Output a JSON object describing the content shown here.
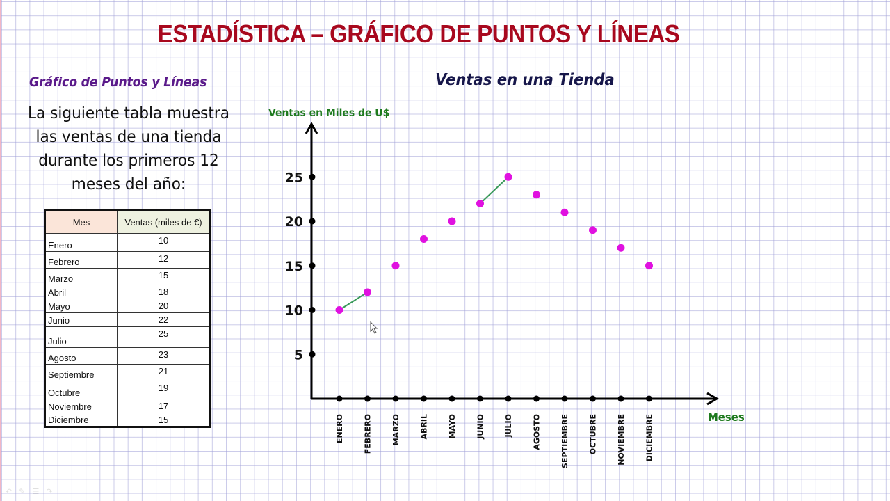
{
  "page": {
    "title": "ESTADÍSTICA – GRÁFICO DE PUNTOS Y LÍNEAS",
    "subtitle": "Gráfico de Puntos y Líneas",
    "intro_lines": [
      "La siguiente tabla muestra",
      "las ventas de una tienda",
      "durante los primeros 12",
      "meses del año:"
    ]
  },
  "table": {
    "headers": [
      "Mes",
      "Ventas (miles de €)"
    ],
    "rows": [
      [
        "Enero",
        "10"
      ],
      [
        "Febrero",
        "12"
      ],
      [
        "Marzo",
        "15"
      ],
      [
        "Abril",
        "18"
      ],
      [
        "Mayo",
        "20"
      ],
      [
        "Junio",
        "22"
      ],
      [
        "Julio",
        "25"
      ],
      [
        "Agosto",
        "23"
      ],
      [
        "Septiembre",
        "21"
      ],
      [
        "Octubre",
        "19"
      ],
      [
        "Noviembre",
        "17"
      ],
      [
        "Diciembre",
        "15"
      ]
    ]
  },
  "chart_data": {
    "type": "scatter",
    "title": "Ventas en una Tienda",
    "xlabel": "Meses",
    "ylabel": "Ventas en Miles de U$",
    "categories": [
      "ENERO",
      "FEBRERO",
      "MARZO",
      "ABRIL",
      "MAYO",
      "JUNIO",
      "JULIO",
      "AGOSTO",
      "SEPTIEMBRE",
      "OCTUBRE",
      "NOVIEMBRE",
      "DICIEMBRE"
    ],
    "values": [
      10,
      12,
      15,
      18,
      20,
      22,
      25,
      23,
      21,
      19,
      17,
      15
    ],
    "y_ticks": [
      5,
      10,
      15,
      20,
      25
    ],
    "ylim": [
      0,
      30
    ],
    "grid": true,
    "legend": null,
    "line_segments": [
      [
        0,
        1
      ],
      [
        5,
        6
      ]
    ],
    "colors": {
      "point": "#e011e0",
      "segment": "#3a9a5a",
      "axis": "#000000",
      "axis_label": "#1e7a1e",
      "title": "#16164a"
    }
  },
  "colors": {
    "main_title": "#a8081e",
    "subtitle": "#5a1a8a"
  }
}
